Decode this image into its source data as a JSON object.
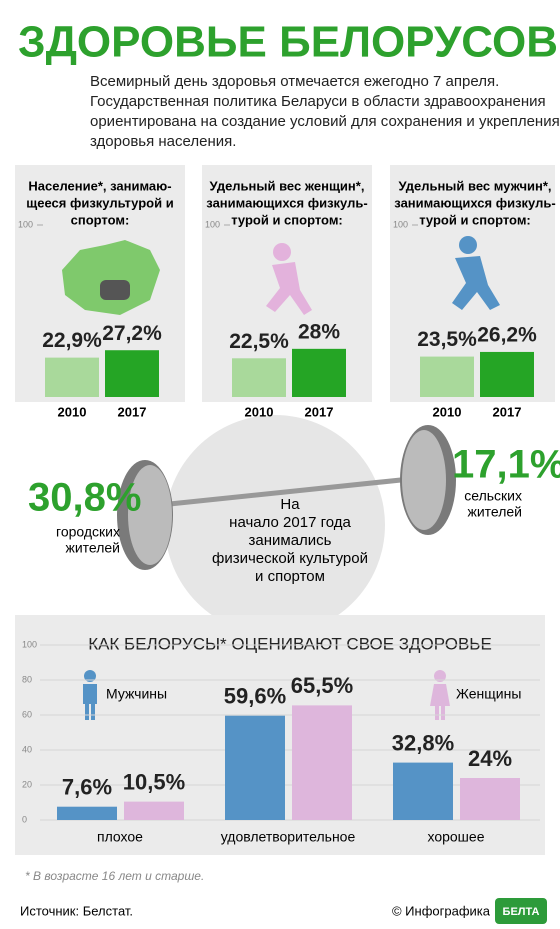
{
  "header": {
    "title": "ЗДОРОВЬЕ БЕЛОРУСОВ",
    "intro": [
      "Всемирный день здоровья отмечается ежегодно 7 апреля.",
      "Государственная политика Беларуси в области здравоохранения",
      "ориентирована на создание условий для сохранения и укрепления",
      "здоровья населения."
    ]
  },
  "chart_data": [
    {
      "type": "bar",
      "title": [
        "Население*, занимаю-",
        "щееся физкультурой и",
        "спортом:"
      ],
      "categories": [
        "2010",
        "2017"
      ],
      "values": [
        22.9,
        27.2
      ],
      "value_labels": [
        "22,9%",
        "27,2%"
      ],
      "colors": [
        "#a9d99b",
        "#25a525"
      ],
      "ylim": [
        0,
        100
      ],
      "yticks": [
        100
      ]
    },
    {
      "type": "bar",
      "title": [
        "Удельный вес женщин*,",
        "занимающихся физкуль-",
        "турой и спортом:"
      ],
      "categories": [
        "2010",
        "2017"
      ],
      "values": [
        22.5,
        28
      ],
      "value_labels": [
        "22,5%",
        "28%"
      ],
      "colors": [
        "#a9d99b",
        "#25a525"
      ],
      "ylim": [
        0,
        100
      ],
      "yticks": [
        100
      ]
    },
    {
      "type": "bar",
      "title": [
        "Удельный вес мужчин*,",
        "занимающихся физкуль-",
        "турой и спортом:"
      ],
      "categories": [
        "2010",
        "2017"
      ],
      "values": [
        23.5,
        26.2
      ],
      "value_labels": [
        "23,5%",
        "26,2%"
      ],
      "colors": [
        "#a9d99b",
        "#25a525"
      ],
      "ylim": [
        0,
        100
      ],
      "yticks": [
        100
      ]
    },
    {
      "type": "grouped_bar",
      "title": "КАК БЕЛОРУСЫ* ОЦЕНИВАЮТ СВОЕ ЗДОРОВЬЕ",
      "categories": [
        "плохое",
        "удовлетворительное",
        "хорошее"
      ],
      "series": [
        {
          "name": "Мужчины",
          "color": "#5593c6",
          "values": [
            7.6,
            59.6,
            32.8
          ],
          "value_labels": [
            "7,6%",
            "59,6%",
            "32,8%"
          ]
        },
        {
          "name": "Женщины",
          "color": "#deb6dc",
          "values": [
            10.5,
            65.5,
            24
          ],
          "value_labels": [
            "10,5%",
            "65,5%",
            "24%"
          ]
        }
      ],
      "ylim": [
        0,
        100
      ],
      "yticks": [
        0,
        20,
        40,
        60,
        80,
        100
      ],
      "grid": true
    }
  ],
  "barbell": {
    "urban": {
      "value": "30,8%",
      "label": [
        "городских",
        "жителей"
      ]
    },
    "rural": {
      "value": "17,1%",
      "label": [
        "сельских",
        "жителей"
      ]
    },
    "center": [
      "На",
      "начало 2017 года",
      "занимались",
      "физической культурой",
      "и спортом"
    ]
  },
  "footer": {
    "note": "* В возрасте 16 лет и старше.",
    "source": "Источник: Белстат.",
    "credit": "© Инфографика",
    "logo": "БЕЛТА"
  }
}
